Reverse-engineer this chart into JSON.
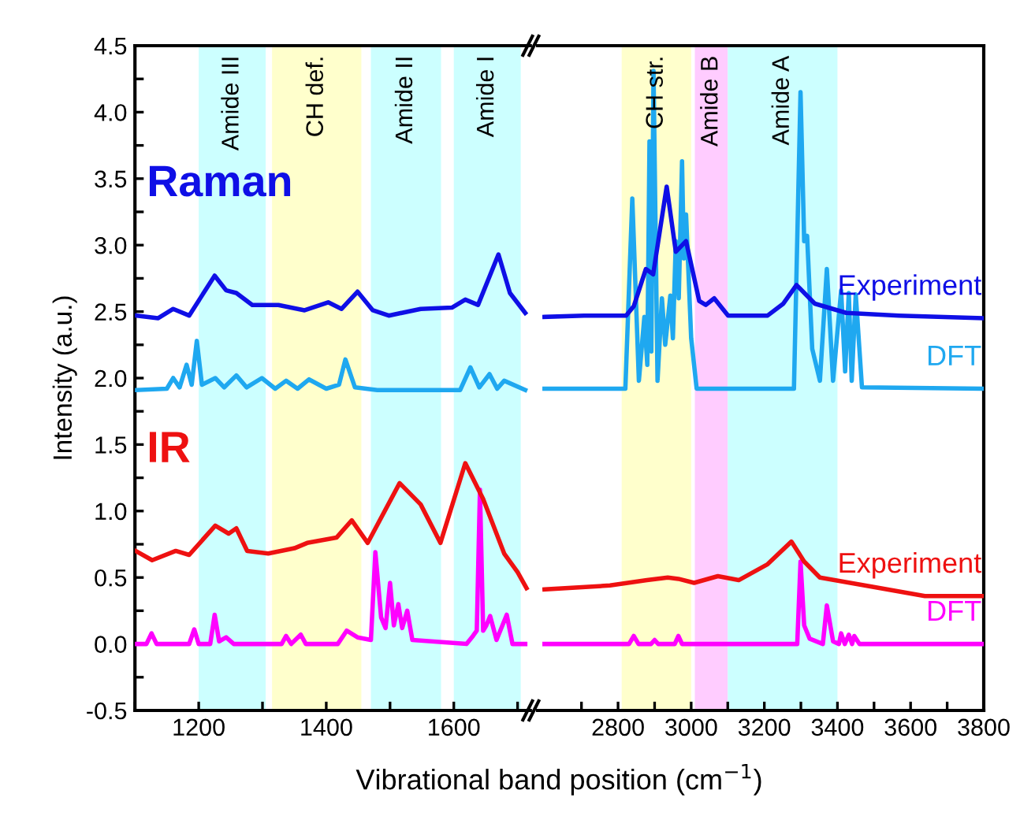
{
  "chart_data": [
    {
      "type": "line",
      "ylabel": "Intensity (a.u.)",
      "xlabel": "Vibrational band position (cm$^{−1}$)",
      "annotations": [
        "Raman",
        "IR"
      ],
      "xlim": [
        1100,
        1720
      ],
      "xticks": [
        {
          "value": 1100,
          "label": null
        },
        1200,
        {
          "value": 1300,
          "label": null
        },
        1400,
        {
          "value": 1500,
          "label": null
        },
        1600,
        {
          "value": 1700,
          "label": null
        }
      ],
      "ylim": [
        -0.5,
        4.5
      ],
      "yticks": [
        -0.5,
        {
          "value": -0.25,
          "label": null
        },
        {
          "value": 0,
          "label": "0.0"
        },
        {
          "value": 0.25,
          "label": null
        },
        0.5,
        {
          "value": 0.75,
          "label": null
        },
        {
          "value": 1,
          "label": "1.0"
        },
        {
          "value": 1.25,
          "label": null
        },
        1.5,
        {
          "value": 1.75,
          "label": null
        },
        {
          "value": 2,
          "label": "2.0"
        },
        {
          "value": 2.25,
          "label": null
        },
        2.5,
        {
          "value": 2.75,
          "label": null
        },
        {
          "value": 3,
          "label": "3.0"
        },
        {
          "value": 3.25,
          "label": null
        },
        3.5,
        {
          "value": 3.75,
          "label": null
        },
        {
          "value": 4,
          "label": "4.0"
        },
        {
          "value": 4.25,
          "label": null
        },
        4.5
      ],
      "bands": [
        {
          "axis": "x",
          "from": 1200,
          "to": 1305,
          "label": "Amide III",
          "color": "#ccffff"
        },
        {
          "axis": "x",
          "from": 1315,
          "to": 1455,
          "label": "CH def.",
          "color": "#ffffcc"
        },
        {
          "axis": "x",
          "from": 1470,
          "to": 1580,
          "label": "Amide II",
          "color": "#ccffff"
        },
        {
          "axis": "x",
          "from": 1600,
          "to": 1705,
          "label": "Amide I",
          "color": "#ccffff"
        }
      ],
      "legend": false,
      "grid": false,
      "series": [
        {
          "color": "#0f0fe6",
          "x": [
            1103,
            1136,
            1160,
            1185,
            1225,
            1243,
            1259,
            1284,
            1325,
            1366,
            1403,
            1424,
            1449,
            1473,
            1498,
            1548,
            1597,
            1618,
            1638,
            1670,
            1688,
            1712
          ],
          "values": [
            2.47,
            2.45,
            2.52,
            2.47,
            2.77,
            2.66,
            2.64,
            2.55,
            2.55,
            2.51,
            2.57,
            2.52,
            2.65,
            2.51,
            2.47,
            2.52,
            2.53,
            2.59,
            2.55,
            2.93,
            2.64,
            2.49
          ]
        },
        {
          "color": "#1fa8f0",
          "x": [
            1103,
            1150,
            1160,
            1170,
            1181,
            1189,
            1197,
            1205,
            1226,
            1240,
            1259,
            1275,
            1299,
            1320,
            1337,
            1355,
            1373,
            1400,
            1420,
            1430,
            1445,
            1480,
            1610,
            1626,
            1640,
            1656,
            1668,
            1679,
            1712
          ],
          "values": [
            1.91,
            1.92,
            2.0,
            1.93,
            2.1,
            1.95,
            2.28,
            1.95,
            2.0,
            1.93,
            2.02,
            1.93,
            2.0,
            1.92,
            1.98,
            1.92,
            1.99,
            1.92,
            1.95,
            2.14,
            1.93,
            1.91,
            1.91,
            2.08,
            1.93,
            2.03,
            1.92,
            1.98,
            1.91
          ]
        },
        {
          "color": "#ee1111",
          "x": [
            1101,
            1127,
            1164,
            1185,
            1226,
            1247,
            1259,
            1276,
            1309,
            1350,
            1370,
            1416,
            1440,
            1465,
            1515,
            1548,
            1579,
            1618,
            1646,
            1679,
            1700,
            1714
          ],
          "values": [
            0.7,
            0.63,
            0.7,
            0.67,
            0.89,
            0.83,
            0.87,
            0.7,
            0.68,
            0.72,
            0.76,
            0.8,
            0.93,
            0.76,
            1.21,
            1.05,
            0.76,
            1.36,
            1.09,
            0.68,
            0.54,
            0.42
          ]
        },
        {
          "color": "#ff00ff",
          "x": [
            1103,
            1118,
            1126,
            1134,
            1185,
            1193,
            1200,
            1218,
            1225,
            1232,
            1243,
            1255,
            1330,
            1337,
            1345,
            1360,
            1368,
            1418,
            1432,
            1449,
            1470,
            1477,
            1486,
            1493,
            1500,
            1506,
            1513,
            1519,
            1527,
            1535,
            1620,
            1630,
            1636,
            1641,
            1646,
            1651,
            1657,
            1667,
            1683,
            1692,
            1712
          ],
          "values": [
            0.0,
            0.0,
            0.08,
            0.0,
            0.0,
            0.11,
            0.0,
            0.0,
            0.22,
            0.02,
            0.05,
            0.0,
            0.0,
            0.06,
            0.0,
            0.07,
            0.0,
            0.0,
            0.1,
            0.05,
            0.03,
            0.69,
            0.2,
            0.12,
            0.46,
            0.14,
            0.3,
            0.12,
            0.25,
            0.03,
            0.0,
            0.06,
            0.1,
            1.16,
            0.1,
            0.14,
            0.21,
            0.03,
            0.22,
            0.0,
            0.0
          ]
        }
      ]
    },
    {
      "type": "line",
      "tick_labels": "x",
      "xlim": [
        2580,
        3800
      ],
      "xticks": [
        {
          "value": 2700,
          "label": null
        },
        2800,
        {
          "value": 2900,
          "label": null
        },
        3000,
        {
          "value": 3100,
          "label": null
        },
        3200,
        {
          "value": 3300,
          "label": null
        },
        3400,
        {
          "value": 3500,
          "label": null
        },
        3600,
        {
          "value": 3700,
          "label": null
        },
        3800
      ],
      "ylim": [
        -0.5,
        4.5
      ],
      "yticks": [
        -0.5,
        0.0,
        0.5,
        1.0,
        1.5,
        2.0,
        2.5,
        3.0,
        3.5,
        4.0,
        4.5
      ],
      "bands": [
        {
          "axis": "x",
          "from": 2810,
          "to": 3000,
          "label": "CH str.",
          "color": "#ffffcc"
        },
        {
          "axis": "x",
          "from": 3010,
          "to": 3100,
          "label": "Amide B",
          "color": "#ffccff"
        },
        {
          "axis": "x",
          "from": 3100,
          "to": 3400,
          "label": "Amide A",
          "color": "#ccffff"
        }
      ],
      "legend": false,
      "grid": false,
      "series": [
        {
          "name": "Experiment",
          "color": "#0f0fe6",
          "x": [
            2599,
            2707,
            2822,
            2843,
            2876,
            2896,
            2933,
            2958,
            2986,
            3022,
            3040,
            3063,
            3101,
            3209,
            3252,
            3288,
            3338,
            3424,
            3568,
            3797
          ],
          "values": [
            2.46,
            2.47,
            2.47,
            2.54,
            2.82,
            2.78,
            3.44,
            2.95,
            3.03,
            2.58,
            2.55,
            2.6,
            2.47,
            2.47,
            2.56,
            2.7,
            2.56,
            2.49,
            2.47,
            2.45
          ]
        },
        {
          "name": "DFT",
          "color": "#1fa8f0",
          "x": [
            2599,
            2820,
            2839,
            2857,
            2872,
            2880,
            2886,
            2891,
            2897,
            2908,
            2920,
            2929,
            2943,
            2950,
            2958,
            2966,
            2975,
            2980,
            2986,
            3000,
            3015,
            3281,
            3299,
            3309,
            3317,
            3331,
            3352,
            3371,
            3388,
            3410,
            3421,
            3431,
            3439,
            3450,
            3467,
            3797
          ],
          "values": [
            1.92,
            1.92,
            3.35,
            1.98,
            2.46,
            2.1,
            3.78,
            2.2,
            4.31,
            1.98,
            2.6,
            2.25,
            2.62,
            2.3,
            3.03,
            2.6,
            3.63,
            2.9,
            3.23,
            2.3,
            1.92,
            1.92,
            4.15,
            3.03,
            3.07,
            2.22,
            1.98,
            2.82,
            1.98,
            2.66,
            2.05,
            2.64,
            1.98,
            2.63,
            1.93,
            1.92
          ]
        },
        {
          "name": "Experiment",
          "color": "#ee1111",
          "x": [
            2599,
            2778,
            2879,
            2936,
            2965,
            3008,
            3073,
            3130,
            3209,
            3274,
            3309,
            3352,
            3496,
            3639,
            3797
          ],
          "values": [
            0.41,
            0.44,
            0.48,
            0.5,
            0.49,
            0.46,
            0.51,
            0.48,
            0.6,
            0.77,
            0.62,
            0.5,
            0.43,
            0.36,
            0.36
          ]
        },
        {
          "name": "DFT",
          "color": "#ff00ff",
          "x": [
            2599,
            2830,
            2843,
            2856,
            2890,
            2900,
            2910,
            2955,
            2965,
            2975,
            3290,
            3299,
            3309,
            3324,
            3360,
            3371,
            3388,
            3404,
            3410,
            3420,
            3431,
            3440,
            3446,
            3460,
            3797
          ],
          "values": [
            0.0,
            0.0,
            0.06,
            0.0,
            0.0,
            0.03,
            0.0,
            0.0,
            0.06,
            0.0,
            0.0,
            0.62,
            0.14,
            0.04,
            0.0,
            0.29,
            0.02,
            0.0,
            0.08,
            0.0,
            0.07,
            0.0,
            0.06,
            0.0,
            0.0
          ]
        }
      ]
    }
  ]
}
